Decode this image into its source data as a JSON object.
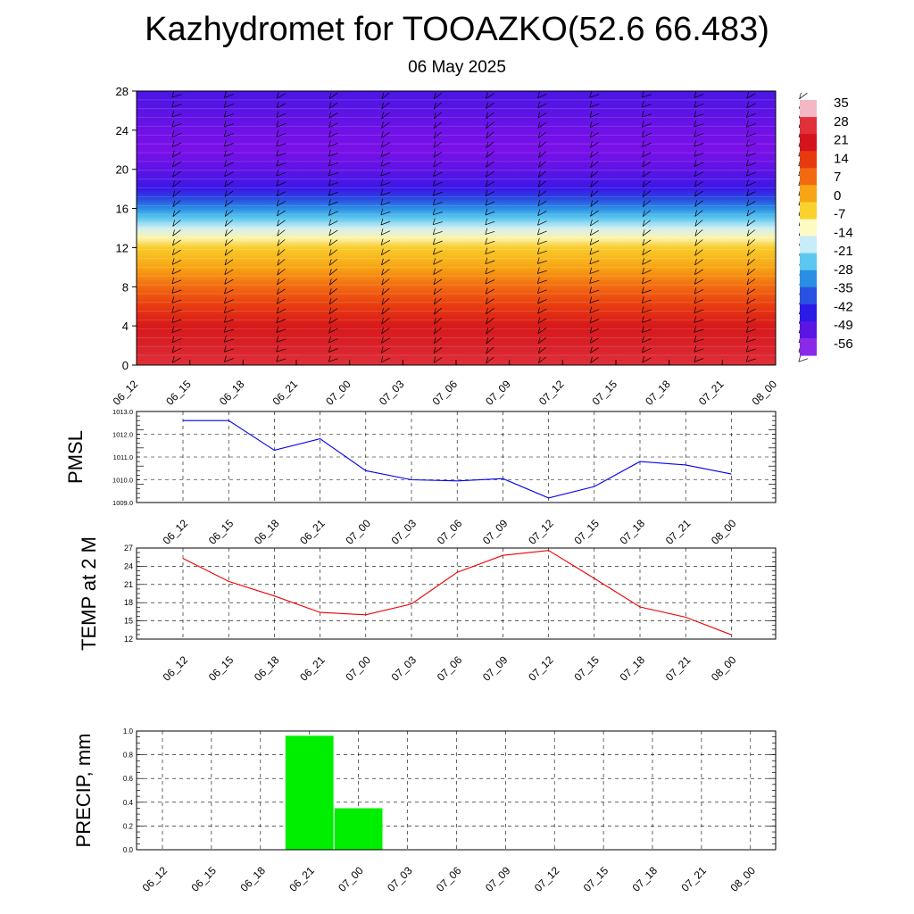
{
  "header": {
    "title": "Kazhydromet for TOOAZKO(52.6 66.483)",
    "date": "06 May 2025"
  },
  "chart_data": [
    {
      "type": "heatmap",
      "title": "",
      "x_tick_labels": [
        "06_12",
        "06_15",
        "06_18",
        "06_21",
        "07_00",
        "07_03",
        "07_06",
        "07_09",
        "07_12",
        "07_15",
        "07_18",
        "07_21",
        "08_00"
      ],
      "y_ticks": [
        0,
        4,
        8,
        12,
        16,
        20,
        24,
        28
      ],
      "ylim": [
        0,
        28
      ],
      "temperature_profile": [
        {
          "z": 0,
          "t": 28
        },
        {
          "z": 2,
          "t": 24
        },
        {
          "z": 4,
          "t": 20
        },
        {
          "z": 6,
          "t": 14
        },
        {
          "z": 8,
          "t": 7
        },
        {
          "z": 10,
          "t": 0
        },
        {
          "z": 12,
          "t": -7
        },
        {
          "z": 13,
          "t": -14
        },
        {
          "z": 14,
          "t": -21
        },
        {
          "z": 15,
          "t": -30
        },
        {
          "z": 16,
          "t": -38
        },
        {
          "z": 17,
          "t": -45
        },
        {
          "z": 18,
          "t": -52
        },
        {
          "z": 20,
          "t": -57
        },
        {
          "z": 22,
          "t": -62
        },
        {
          "z": 24,
          "t": -60
        },
        {
          "z": 26,
          "t": -56
        },
        {
          "z": 28,
          "t": -54
        }
      ],
      "colorbar": {
        "labels": [
          "35",
          "28",
          "21",
          "14",
          "7",
          "0",
          "-7",
          "-14",
          "-21",
          "-28",
          "-35",
          "-42",
          "-49",
          "-56"
        ],
        "colors": [
          "#f4b8c4",
          "#e0303a",
          "#d4141c",
          "#e83a10",
          "#f26a10",
          "#f7a514",
          "#f9d22e",
          "#fdfac4",
          "#c8ecf8",
          "#5cc8f0",
          "#2a8ee4",
          "#2a52e0",
          "#2a1ae8",
          "#5a14e4",
          "#8a2ae8"
        ]
      },
      "wind_barbs": true,
      "grid": false
    },
    {
      "type": "line",
      "ylabel": "PMSL",
      "ylim": [
        1009.0,
        1013.0
      ],
      "y_tick_labels": [
        "1009.0",
        "1010.0",
        "1011.0",
        "1012.0",
        "1013.0"
      ],
      "categories": [
        "06_12",
        "06_15",
        "06_18",
        "06_21",
        "07_00",
        "07_03",
        "07_06",
        "07_09",
        "07_12",
        "07_15",
        "07_18",
        "07_21",
        "08_00"
      ],
      "values": [
        1012.6,
        1012.6,
        1011.3,
        1011.8,
        1010.4,
        1010.0,
        1009.95,
        1010.05,
        1009.2,
        1009.7,
        1010.8,
        1010.65,
        1010.25
      ],
      "color": "#0000ee",
      "grid": true
    },
    {
      "type": "line",
      "ylabel": "TEMP at 2 M",
      "ylim": [
        12,
        27
      ],
      "y_tick_labels": [
        "12",
        "15",
        "18",
        "21",
        "24",
        "27"
      ],
      "categories": [
        "06_12",
        "06_15",
        "06_18",
        "06_21",
        "07_00",
        "07_03",
        "07_06",
        "07_09",
        "07_12",
        "07_15",
        "07_18",
        "07_21",
        "08_00"
      ],
      "values": [
        25.3,
        21.5,
        19.1,
        16.4,
        16.0,
        17.8,
        23.0,
        25.8,
        26.6,
        22.0,
        17.3,
        15.6,
        12.7
      ],
      "color": "#ee0000",
      "grid": true
    },
    {
      "type": "bar",
      "ylabel": "PRECIP, mm",
      "ylim": [
        0.0,
        1.0
      ],
      "y_tick_labels": [
        "0.0",
        "0.2",
        "0.4",
        "0.6",
        "0.8",
        "1.0"
      ],
      "categories": [
        "06_12",
        "06_15",
        "06_18",
        "06_21",
        "07_00",
        "07_03",
        "07_06",
        "07_09",
        "07_12",
        "07_15",
        "07_18",
        "07_21",
        "08_00"
      ],
      "values": [
        0,
        0,
        0,
        0.96,
        0.35,
        0,
        0,
        0,
        0,
        0,
        0,
        0,
        0
      ],
      "color": "#00ee00",
      "grid": true
    }
  ]
}
